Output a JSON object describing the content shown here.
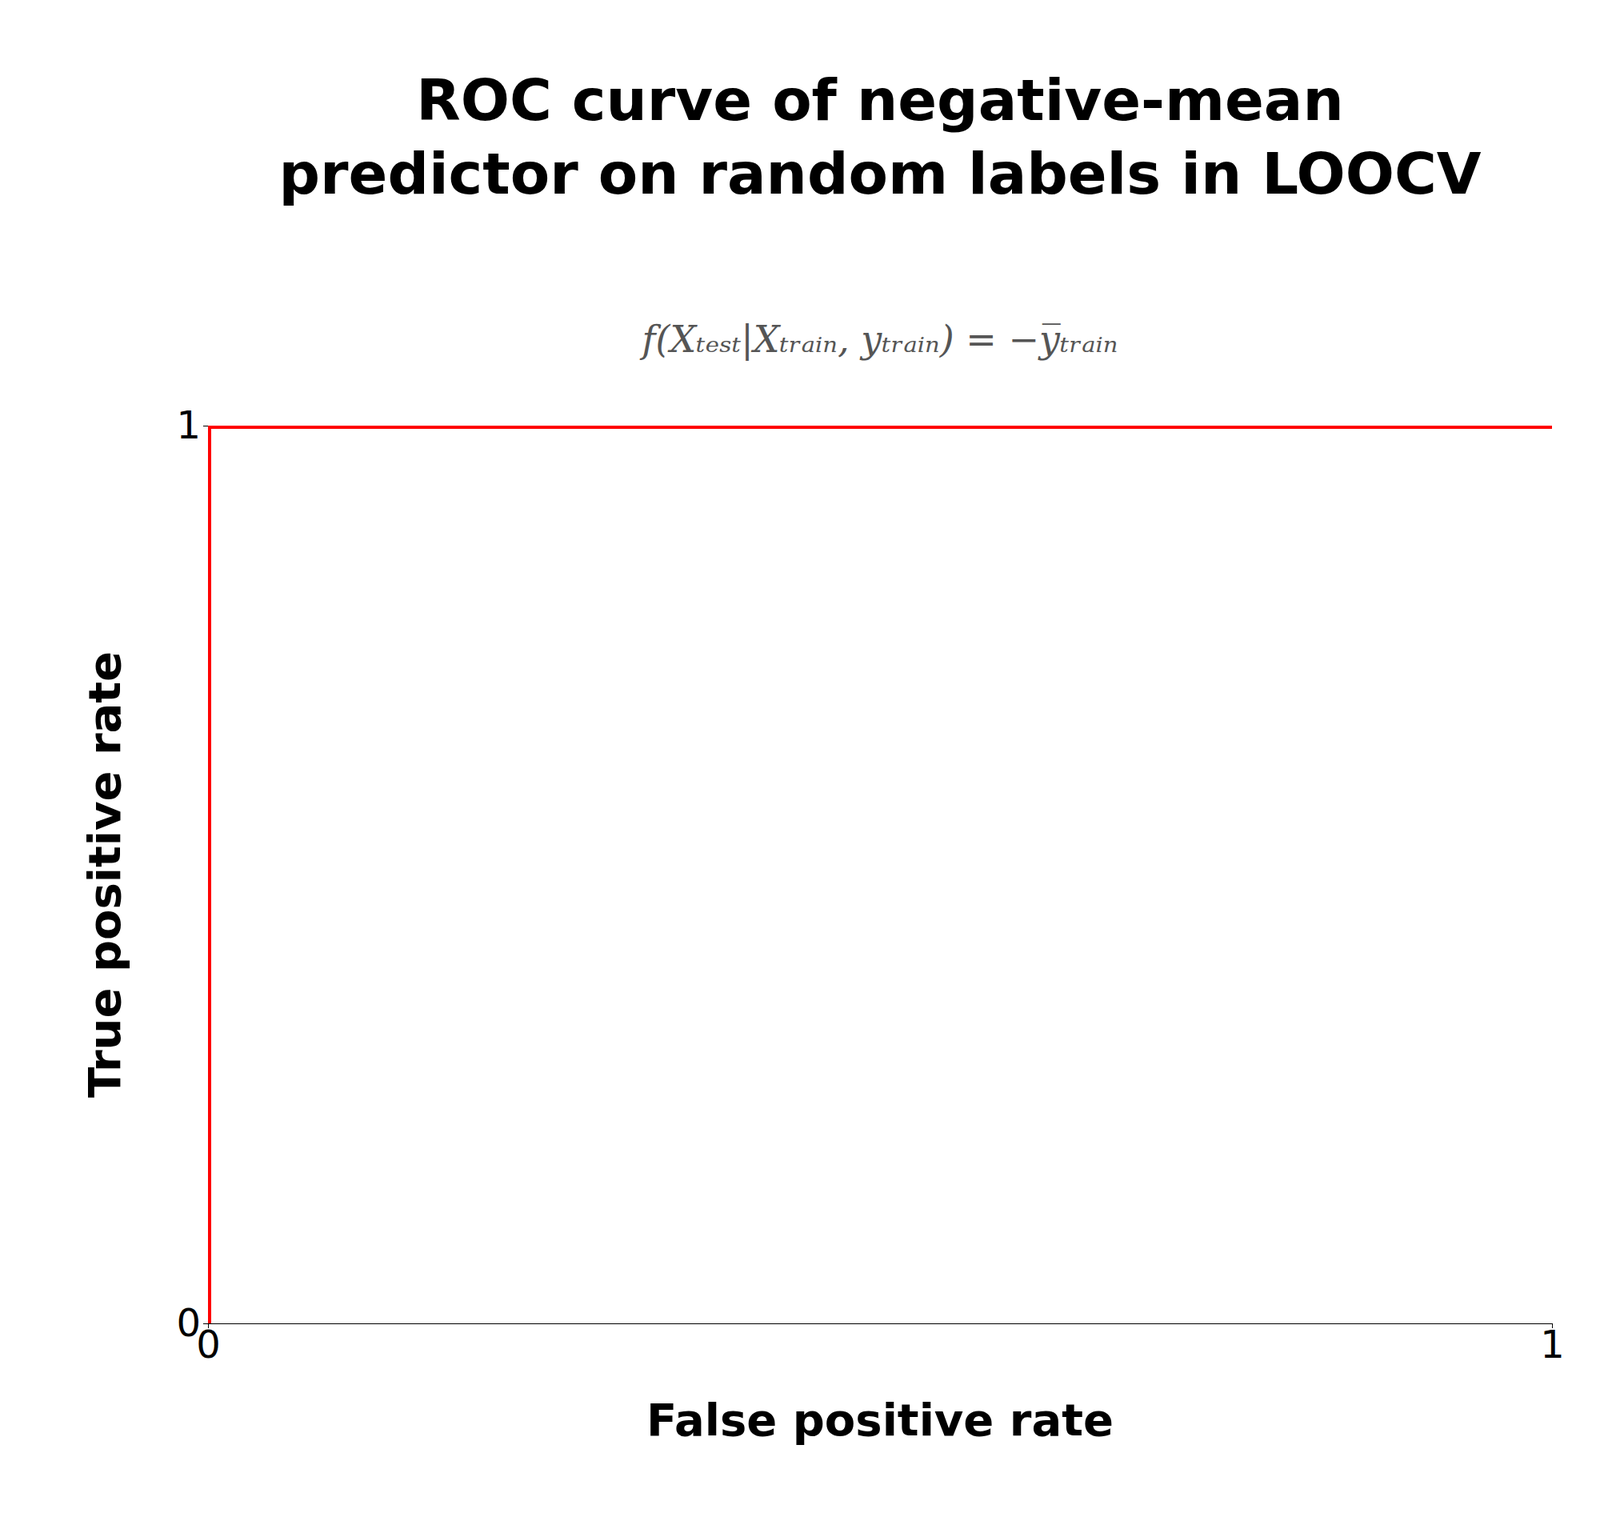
{
  "chart_data": {
    "type": "line",
    "title": [
      "ROC curve of negative-mean",
      "predictor on random labels in LOOCV"
    ],
    "subtitle": "f(Xₜₑₛₜ|Xₜᵣₐᵢₙ, yₜᵣₐᵢₙ) = −y̅ₜᵣₐᵢₙ",
    "xlabel": "False positive rate",
    "ylabel": "True positive rate",
    "x": [
      0,
      0,
      1
    ],
    "values": [
      0,
      1,
      1
    ],
    "color": "#ff0000",
    "xlim": [
      0,
      1
    ],
    "ylim": [
      0,
      1
    ],
    "xticks": [
      0,
      1
    ],
    "yticks": [
      0,
      1
    ],
    "grid": false
  }
}
